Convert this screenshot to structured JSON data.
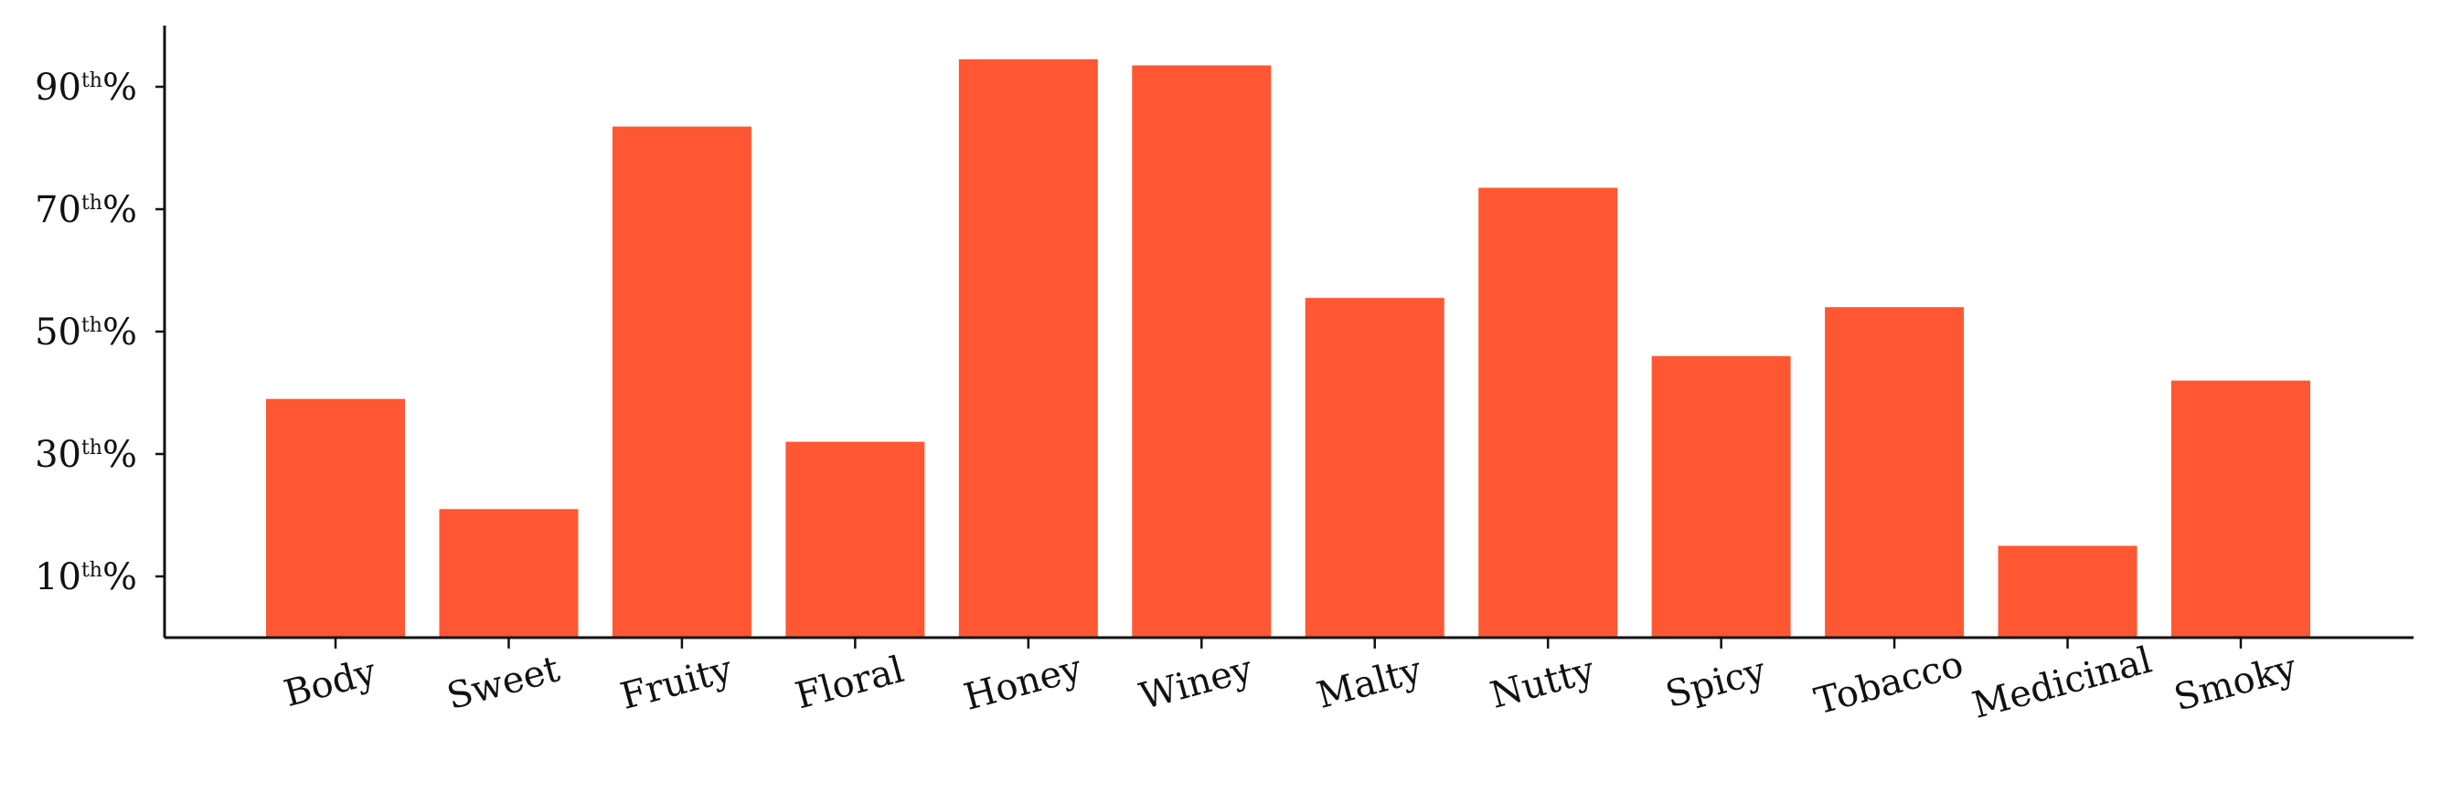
{
  "chart_data": {
    "type": "bar",
    "categories": [
      "Body",
      "Sweet",
      "Fruity",
      "Floral",
      "Honey",
      "Winey",
      "Malty",
      "Nutty",
      "Spicy",
      "Tobacco",
      "Medicinal",
      "Smoky"
    ],
    "values": [
      39,
      21,
      83.5,
      32,
      94.5,
      93.5,
      55.5,
      73.5,
      46,
      54,
      15,
      42
    ],
    "title": "",
    "xlabel": "",
    "ylabel": "",
    "ylim": [
      0,
      100
    ],
    "yticks": [
      {
        "value": 10,
        "num": "10",
        "sup": "th",
        "suffix": "%"
      },
      {
        "value": 30,
        "num": "30",
        "sup": "th",
        "suffix": "%"
      },
      {
        "value": 50,
        "num": "50",
        "sup": "th",
        "suffix": "%"
      },
      {
        "value": 70,
        "num": "70",
        "sup": "th",
        "suffix": "%"
      },
      {
        "value": 90,
        "num": "90",
        "sup": "th",
        "suffix": "%"
      }
    ],
    "bar_color": "#FF5733",
    "grid": false,
    "legend": "none",
    "x_tick_rotation": 15
  }
}
